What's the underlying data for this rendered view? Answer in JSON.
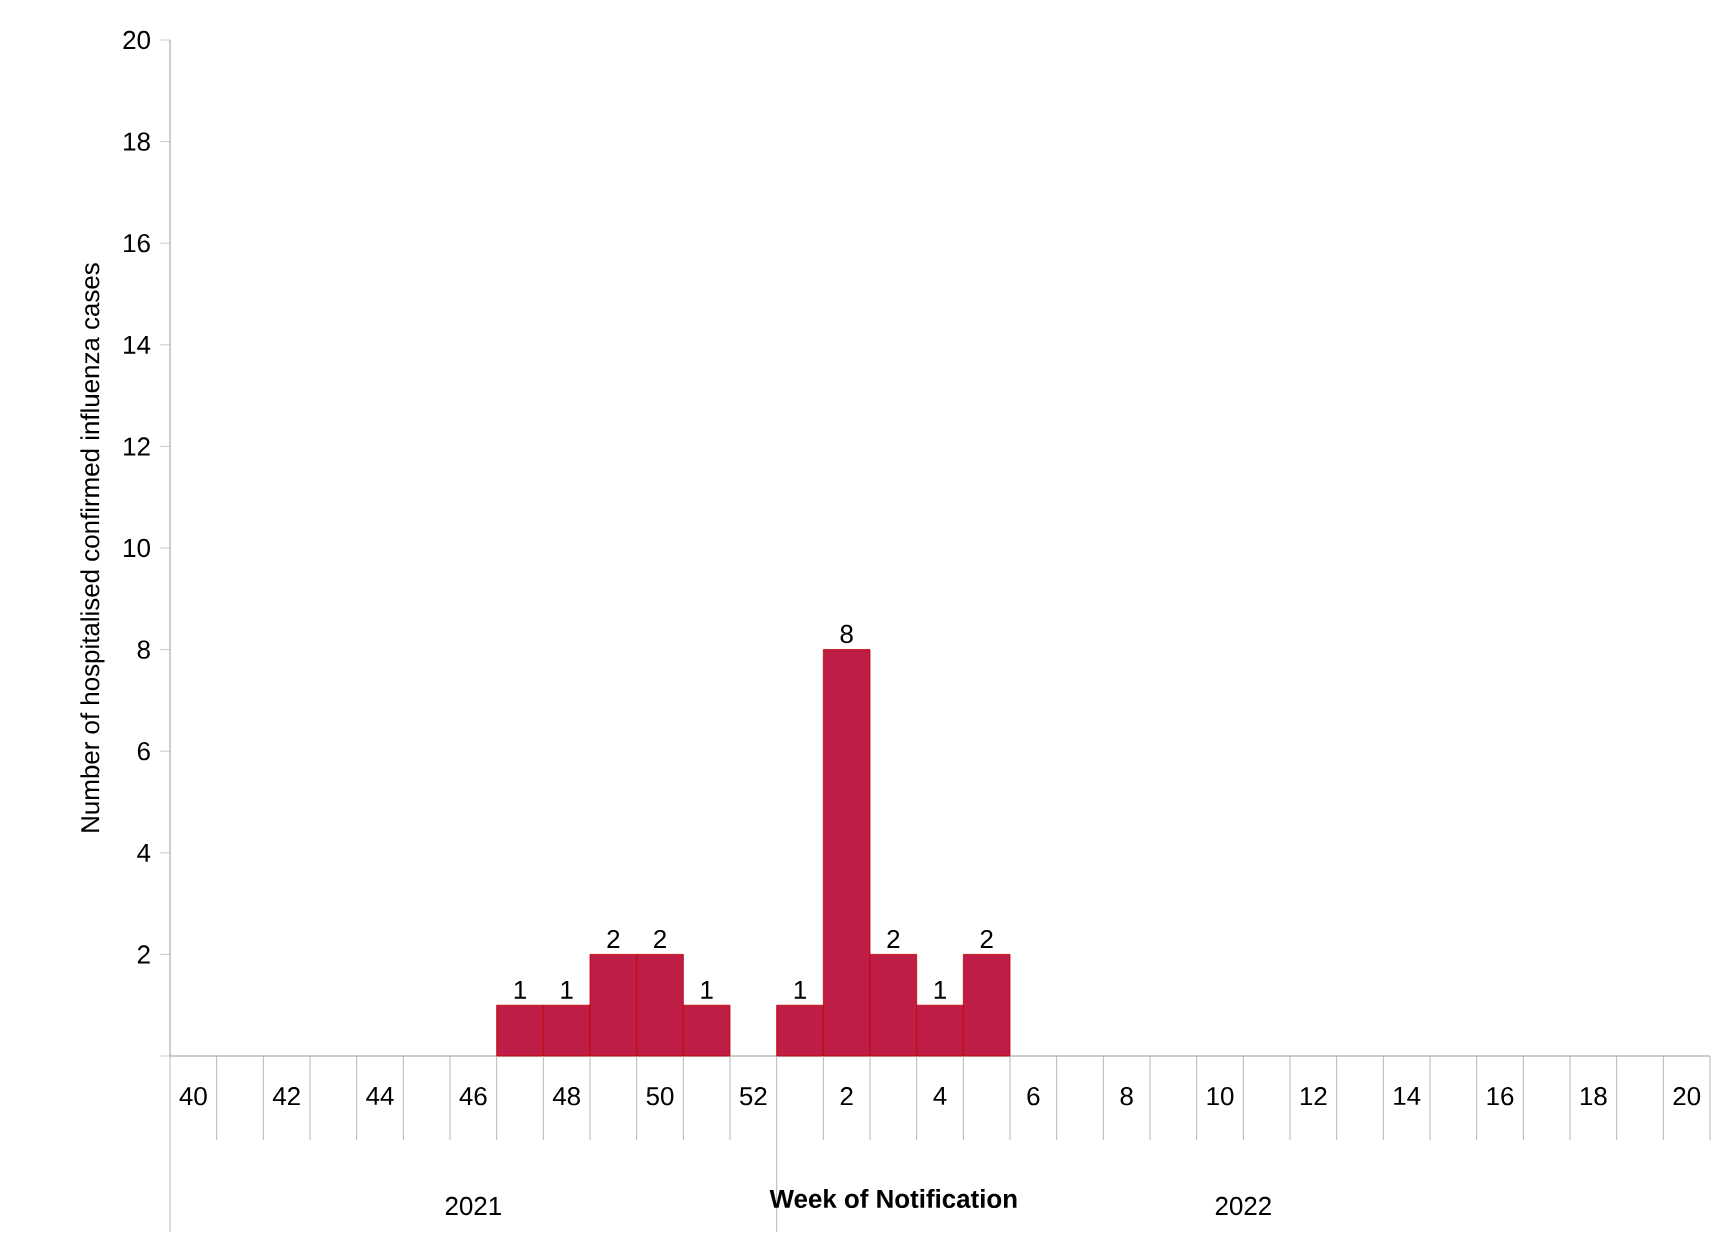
{
  "chart_data": {
    "type": "bar",
    "xlabel": "Week of Notification",
    "ylabel": "Number of hospitalised confirmed influenza cases",
    "categories": [
      "40",
      null,
      "42",
      null,
      "44",
      null,
      "46",
      null,
      "48",
      null,
      "50",
      null,
      "52",
      null,
      "2",
      null,
      "4",
      null,
      "6",
      null,
      "8",
      null,
      "10",
      null,
      "12",
      null,
      "14",
      null,
      "16",
      null,
      "18",
      null,
      "20"
    ],
    "values": [
      null,
      null,
      null,
      null,
      null,
      null,
      null,
      1,
      1,
      2,
      2,
      1,
      null,
      1,
      8,
      2,
      1,
      2,
      null,
      null,
      null,
      null,
      null,
      null,
      null,
      null,
      null,
      null,
      null,
      null,
      null,
      null,
      null
    ],
    "color": "#be1e45",
    "data_labels": true,
    "ylim": [
      0,
      20
    ],
    "yticks": [
      {
        "value": 0,
        "label": null
      },
      2,
      4,
      6,
      8,
      10,
      12,
      14,
      16,
      18,
      20
    ],
    "annotations": [
      "2021",
      "2022"
    ],
    "grid": false
  }
}
